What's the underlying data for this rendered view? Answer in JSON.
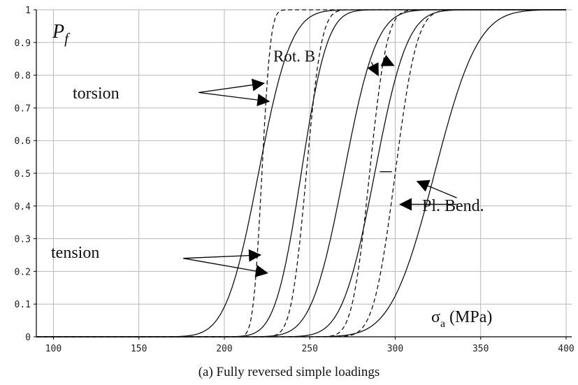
{
  "chart_data": {
    "type": "line",
    "title": "",
    "ylabel": "P_f",
    "ylabel_main": "P",
    "ylabel_sub": "f",
    "xlabel": "σ_a (MPa)",
    "xlabel_main": "σ",
    "xlabel_sub": "a",
    "xlabel_unit": "(MPa)",
    "xlim": [
      90,
      400
    ],
    "ylim": [
      0,
      1
    ],
    "xticks": [
      100,
      150,
      200,
      250,
      300,
      350,
      400
    ],
    "yticks": [
      0,
      0.1,
      0.2,
      0.3,
      0.4,
      0.5,
      0.6,
      0.7,
      0.8,
      0.9,
      1
    ],
    "ytick_labels": [
      "0",
      "0.1",
      "0.2",
      "0.3",
      "0.4",
      "0.5",
      "0.6",
      "0.7",
      "0.8",
      "0.9",
      "1"
    ],
    "grid": true,
    "series": [
      {
        "style": "solid",
        "median": 220,
        "spread": 15
      },
      {
        "style": "solid",
        "median": 245,
        "spread": 12
      },
      {
        "style": "solid",
        "median": 270,
        "spread": 15
      },
      {
        "style": "solid",
        "median": 288,
        "spread": 15
      },
      {
        "style": "solid",
        "median": 323,
        "spread": 20
      },
      {
        "style": "dashed",
        "median": 222,
        "spread": 4
      },
      {
        "style": "dashed",
        "median": 248,
        "spread": 7
      },
      {
        "style": "dashed",
        "median": 285,
        "spread": 8
      },
      {
        "style": "dashed",
        "median": 300,
        "spread": 10
      }
    ],
    "annotations": [
      {
        "text": "torsion",
        "x": 165,
        "y": 0.75
      },
      {
        "text": "Rot. B",
        "x": 290,
        "y": 0.87
      },
      {
        "text": "tension",
        "x": 135,
        "y": 0.25
      },
      {
        "text": "Pl. Bend.",
        "x": 350,
        "y": 0.4
      }
    ],
    "arrows": [
      {
        "from": [
          185,
          0.747
        ],
        "to": [
          223,
          0.775
        ]
      },
      {
        "from": [
          185,
          0.747
        ],
        "to": [
          226,
          0.72
        ]
      },
      {
        "from": [
          295,
          0.84
        ],
        "to": [
          299,
          0.83
        ]
      },
      {
        "from": [
          286,
          0.84
        ],
        "to": [
          290,
          0.8
        ]
      },
      {
        "from": [
          176,
          0.24
        ],
        "to": [
          221,
          0.25
        ]
      },
      {
        "from": [
          176,
          0.24
        ],
        "to": [
          225,
          0.195
        ]
      },
      {
        "from": [
          336,
          0.425
        ],
        "to": [
          313,
          0.475
        ]
      },
      {
        "from": [
          336,
          0.405
        ],
        "to": [
          303,
          0.405
        ]
      }
    ],
    "marks": [
      {
        "type": "segment",
        "x1": 291,
        "x2": 298,
        "y": 0.505
      }
    ]
  },
  "caption": "(a)  Fully reversed simple loadings"
}
